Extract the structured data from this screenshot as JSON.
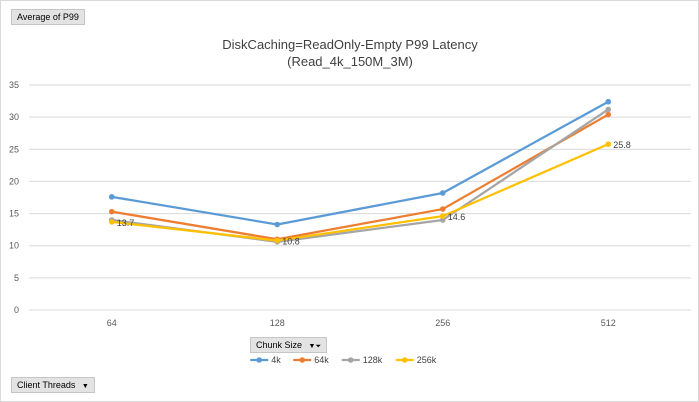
{
  "pivot": {
    "value_field": "Average of P99",
    "axis_field": "Chunk Size",
    "legend_field": "Client Threads"
  },
  "chart_data": {
    "type": "line",
    "title": "DiskCaching=ReadOnly-Empty P99 Latency",
    "subtitle": "(Read_4k_150M_3M)",
    "categories": [
      "64",
      "128",
      "256",
      "512"
    ],
    "ylim": [
      0,
      35
    ],
    "yticks": [
      0,
      5,
      10,
      15,
      20,
      25,
      30,
      35
    ],
    "grid": true,
    "legend_position": "bottom",
    "series": [
      {
        "name": "4k",
        "color": "#5B9BD5",
        "values": [
          17.6,
          13.3,
          18.2,
          32.4
        ]
      },
      {
        "name": "64k",
        "color": "#ED7D31",
        "values": [
          15.3,
          11.0,
          15.7,
          30.4
        ]
      },
      {
        "name": "128k",
        "color": "#A5A5A5",
        "values": [
          14.0,
          10.6,
          14.0,
          31.2
        ]
      },
      {
        "name": "256k",
        "color": "#FFC000",
        "values": [
          13.7,
          10.8,
          14.6,
          25.8
        ]
      }
    ],
    "data_labels": [
      {
        "series": "256k",
        "index": 0,
        "text": "13.7"
      },
      {
        "series": "256k",
        "index": 1,
        "text": "10.8"
      },
      {
        "series": "256k",
        "index": 2,
        "text": "14.6"
      },
      {
        "series": "256k",
        "index": 3,
        "text": "25.8"
      }
    ]
  }
}
